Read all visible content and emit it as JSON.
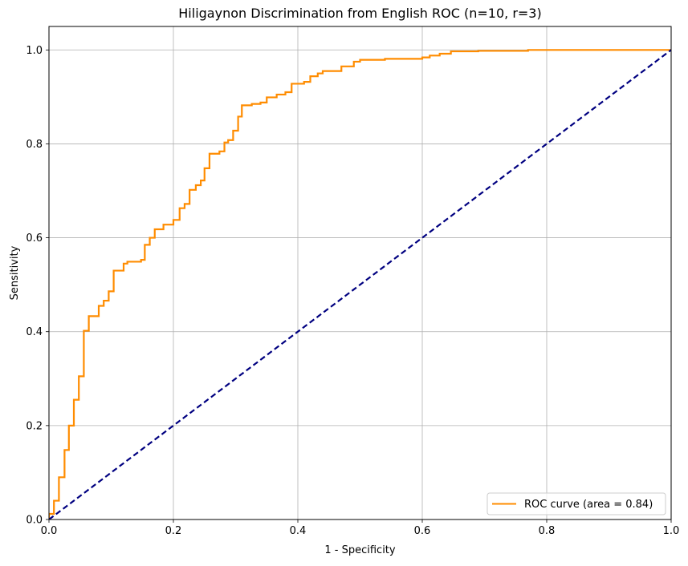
{
  "chart_data": {
    "type": "line",
    "title": "Hiligaynon Discrimination from English ROC (n=10, r=3)",
    "xlabel": "1 - Specificity",
    "ylabel": "Sensitivity",
    "xlim": [
      0.0,
      1.0
    ],
    "ylim": [
      0.0,
      1.05
    ],
    "xticks": [
      "0.0",
      "0.2",
      "0.4",
      "0.6",
      "0.8",
      "1.0"
    ],
    "yticks": [
      "0.0",
      "0.2",
      "0.4",
      "0.6",
      "0.8",
      "1.0"
    ],
    "grid": true,
    "legend_position": "lower-right",
    "series": [
      {
        "name": "ROC curve (area = 0.84)",
        "color": "#ff8c00",
        "style": "solid-steps",
        "points": [
          [
            0.0,
            0.0
          ],
          [
            0.0,
            0.012
          ],
          [
            0.008,
            0.012
          ],
          [
            0.008,
            0.04
          ],
          [
            0.016,
            0.04
          ],
          [
            0.016,
            0.09
          ],
          [
            0.025,
            0.09
          ],
          [
            0.025,
            0.148
          ],
          [
            0.032,
            0.148
          ],
          [
            0.032,
            0.2
          ],
          [
            0.04,
            0.2
          ],
          [
            0.04,
            0.255
          ],
          [
            0.048,
            0.255
          ],
          [
            0.048,
            0.305
          ],
          [
            0.056,
            0.305
          ],
          [
            0.056,
            0.402
          ],
          [
            0.064,
            0.402
          ],
          [
            0.064,
            0.433
          ],
          [
            0.08,
            0.433
          ],
          [
            0.08,
            0.455
          ],
          [
            0.088,
            0.455
          ],
          [
            0.088,
            0.466
          ],
          [
            0.096,
            0.466
          ],
          [
            0.096,
            0.486
          ],
          [
            0.104,
            0.486
          ],
          [
            0.104,
            0.53
          ],
          [
            0.12,
            0.53
          ],
          [
            0.12,
            0.545
          ],
          [
            0.126,
            0.545
          ],
          [
            0.126,
            0.549
          ],
          [
            0.148,
            0.549
          ],
          [
            0.148,
            0.553
          ],
          [
            0.154,
            0.553
          ],
          [
            0.154,
            0.585
          ],
          [
            0.162,
            0.585
          ],
          [
            0.162,
            0.6
          ],
          [
            0.17,
            0.6
          ],
          [
            0.17,
            0.618
          ],
          [
            0.184,
            0.618
          ],
          [
            0.184,
            0.628
          ],
          [
            0.2,
            0.628
          ],
          [
            0.2,
            0.638
          ],
          [
            0.21,
            0.638
          ],
          [
            0.21,
            0.663
          ],
          [
            0.218,
            0.663
          ],
          [
            0.218,
            0.672
          ],
          [
            0.226,
            0.672
          ],
          [
            0.226,
            0.702
          ],
          [
            0.236,
            0.702
          ],
          [
            0.236,
            0.712
          ],
          [
            0.244,
            0.712
          ],
          [
            0.244,
            0.722
          ],
          [
            0.25,
            0.722
          ],
          [
            0.25,
            0.748
          ],
          [
            0.258,
            0.748
          ],
          [
            0.258,
            0.779
          ],
          [
            0.274,
            0.779
          ],
          [
            0.274,
            0.784
          ],
          [
            0.282,
            0.784
          ],
          [
            0.282,
            0.803
          ],
          [
            0.288,
            0.803
          ],
          [
            0.288,
            0.808
          ],
          [
            0.296,
            0.808
          ],
          [
            0.296,
            0.828
          ],
          [
            0.304,
            0.828
          ],
          [
            0.304,
            0.858
          ],
          [
            0.31,
            0.858
          ],
          [
            0.31,
            0.882
          ],
          [
            0.326,
            0.882
          ],
          [
            0.326,
            0.885
          ],
          [
            0.34,
            0.885
          ],
          [
            0.34,
            0.888
          ],
          [
            0.35,
            0.888
          ],
          [
            0.35,
            0.899
          ],
          [
            0.366,
            0.899
          ],
          [
            0.366,
            0.905
          ],
          [
            0.38,
            0.905
          ],
          [
            0.38,
            0.91
          ],
          [
            0.39,
            0.91
          ],
          [
            0.39,
            0.928
          ],
          [
            0.41,
            0.928
          ],
          [
            0.41,
            0.932
          ],
          [
            0.42,
            0.932
          ],
          [
            0.42,
            0.944
          ],
          [
            0.432,
            0.944
          ],
          [
            0.432,
            0.95
          ],
          [
            0.44,
            0.95
          ],
          [
            0.44,
            0.955
          ],
          [
            0.47,
            0.955
          ],
          [
            0.47,
            0.965
          ],
          [
            0.49,
            0.965
          ],
          [
            0.49,
            0.975
          ],
          [
            0.5,
            0.975
          ],
          [
            0.5,
            0.979
          ],
          [
            0.54,
            0.979
          ],
          [
            0.54,
            0.981
          ],
          [
            0.6,
            0.981
          ],
          [
            0.6,
            0.984
          ],
          [
            0.612,
            0.984
          ],
          [
            0.612,
            0.988
          ],
          [
            0.628,
            0.988
          ],
          [
            0.628,
            0.992
          ],
          [
            0.646,
            0.992
          ],
          [
            0.646,
            0.997
          ],
          [
            0.69,
            0.997
          ],
          [
            0.69,
            0.998
          ],
          [
            0.77,
            0.998
          ],
          [
            0.77,
            1.0
          ],
          [
            1.0,
            1.0
          ]
        ]
      },
      {
        "name": "",
        "color": "#000080",
        "style": "dashed",
        "points": [
          [
            0.0,
            0.0
          ],
          [
            1.0,
            1.0
          ]
        ]
      }
    ]
  }
}
